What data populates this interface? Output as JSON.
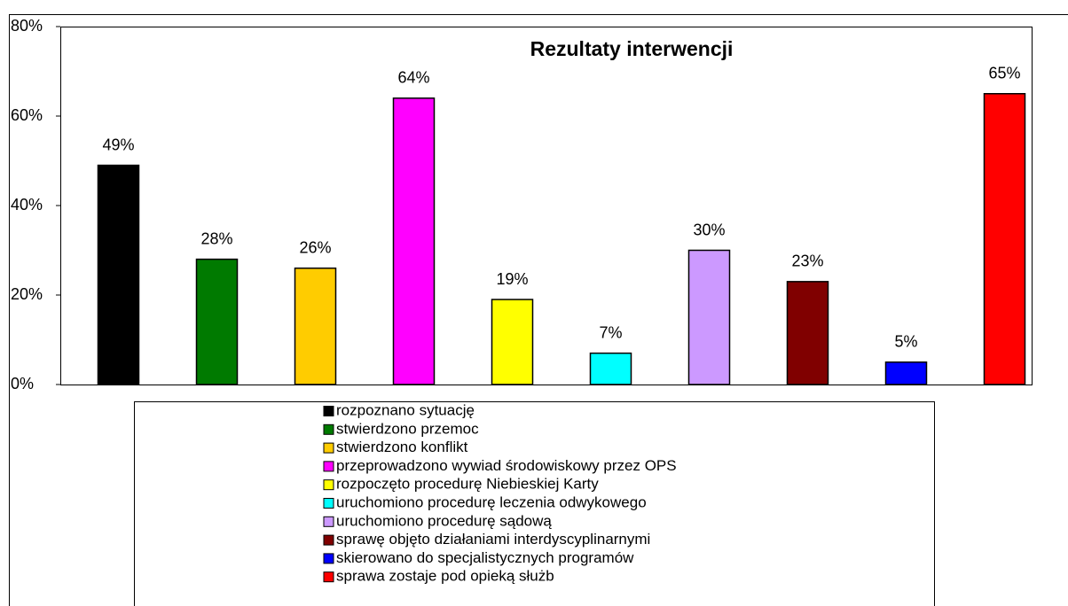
{
  "chart_data": {
    "type": "bar",
    "title": "Rezultaty interwencji",
    "categories": [
      "rozpoznano sytuację",
      "stwierdzono przemoc",
      "stwierdzono konflikt",
      "przeprowadzono wywiad środowiskowy przez OPS",
      "rozpoczęto procedurę Niebieskiej Karty",
      "uruchomiono procedurę leczenia odwykowego",
      "uruchomiono procedurę sądową",
      "sprawę objęto działaniami interdyscyplinarnymi",
      "skierowano do specjalistycznych programów",
      "sprawa zostaje pod opieką służb"
    ],
    "values": [
      49,
      28,
      26,
      64,
      19,
      7,
      30,
      23,
      5,
      65
    ],
    "value_labels": [
      "49%",
      "28%",
      "26%",
      "64%",
      "19%",
      "7%",
      "30%",
      "23%",
      "5%",
      "65%"
    ],
    "colors": [
      "#000000",
      "#007a00",
      "#ffcc00",
      "#ff00ff",
      "#ffff00",
      "#00ffff",
      "#cc99ff",
      "#800000",
      "#0000ff",
      "#ff0000"
    ],
    "ylim": [
      0,
      80
    ],
    "yticks": [
      {
        "value": 0,
        "label": "0%"
      },
      {
        "value": 20,
        "label": "20%"
      },
      {
        "value": 40,
        "label": "40%"
      },
      {
        "value": 60,
        "label": "60%"
      },
      {
        "value": 80,
        "label": "80%"
      }
    ],
    "legend": "bottom"
  }
}
